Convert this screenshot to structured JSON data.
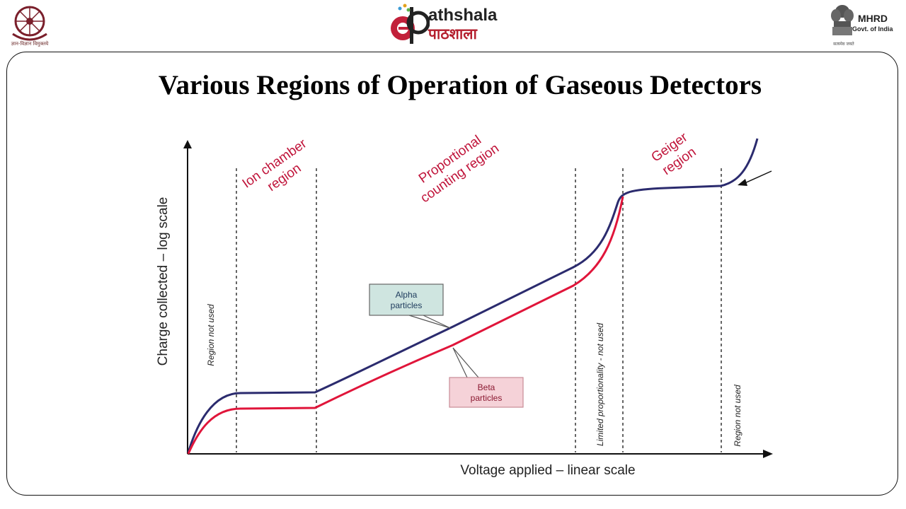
{
  "header": {
    "left_logo_caption": "ज्ञान-विज्ञान विमुक्तये",
    "center_logo": {
      "brand_en": "athshala",
      "brand_hi": "पाठशाला"
    },
    "right_logo": {
      "name": "MHRD",
      "subtitle": "Govt. of India",
      "caption": "सत्यमेव जयते"
    }
  },
  "slide": {
    "title": "Various Regions of Operation of Gaseous Detectors"
  },
  "colors": {
    "alpha": "#2b2b6e",
    "beta": "#e0153a",
    "region_label": "#c0143a",
    "alpha_box": "#cfe5e0",
    "beta_box": "#f5d2d8"
  },
  "chart_data": {
    "type": "line",
    "xlabel": "Voltage applied – linear scale",
    "ylabel": "Charge collected – log scale",
    "x_scale": "linear",
    "y_scale": "log",
    "regions": [
      {
        "label_lines": [
          "Region not used"
        ],
        "orientation": "vertical"
      },
      {
        "label_lines": [
          "Ion chamber",
          "region"
        ],
        "orientation": "diagonal"
      },
      {
        "label_lines": [
          "Proportional",
          "counting region"
        ],
        "orientation": "diagonal"
      },
      {
        "label_lines": [
          "Limited proportionality - not used"
        ],
        "orientation": "vertical"
      },
      {
        "label_lines": [
          "Geiger",
          "region"
        ],
        "orientation": "diagonal"
      },
      {
        "label_lines": [
          "Region not used"
        ],
        "orientation": "vertical"
      }
    ],
    "series": [
      {
        "name_lines": [
          "Alpha",
          "particles"
        ],
        "color_key": "alpha"
      },
      {
        "name_lines": [
          "Beta",
          "particles"
        ],
        "color_key": "beta"
      }
    ]
  }
}
